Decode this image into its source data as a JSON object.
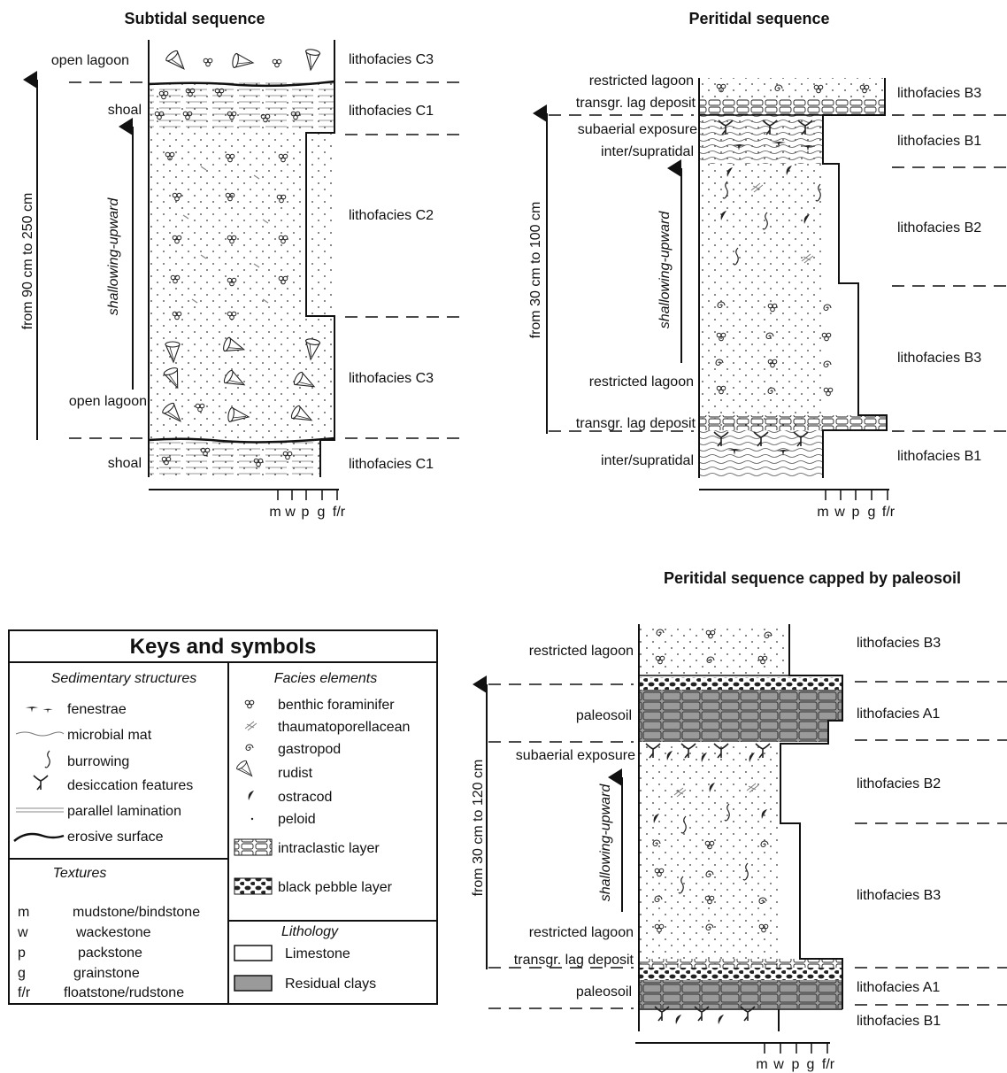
{
  "subtidal": {
    "title": "Subtidal sequence",
    "thickness": "from 90 cm to 250 cm",
    "trend": "shallowing-upward",
    "env_left": [
      "open lagoon",
      "shoal",
      "open lagoon",
      "shoal"
    ],
    "lithofacies": [
      "lithofacies C3",
      "lithofacies C1",
      "lithofacies C2",
      "lithofacies C3",
      "lithofacies C1"
    ],
    "texture_ticks": [
      "m",
      "w",
      "p",
      "g",
      "f/r"
    ]
  },
  "peritidal": {
    "title": "Peritidal sequence",
    "thickness": "from 30 cm to 100 cm",
    "trend": "shallowing-upward",
    "env_left": [
      "restricted lagoon",
      "transgr. lag deposit",
      "subaerial exposure",
      "inter/supratidal",
      "restricted lagoon",
      "transgr. lag deposit",
      "inter/supratidal"
    ],
    "lithofacies": [
      "lithofacies B3",
      "lithofacies B1",
      "lithofacies B2",
      "lithofacies B3",
      "lithofacies B1"
    ],
    "texture_ticks": [
      "m",
      "w",
      "p",
      "g",
      "f/r"
    ]
  },
  "paleosoil": {
    "title": "Peritidal sequence capped by paleosoil",
    "thickness": "from 30 cm to 120 cm",
    "trend": "shallowing-upward",
    "env_left": [
      "restricted lagoon",
      "paleosoil",
      "subaerial exposure",
      "restricted lagoon",
      "transgr. lag deposit",
      "paleosoil"
    ],
    "lithofacies": [
      "lithofacies B3",
      "lithofacies A1",
      "lithofacies B2",
      "lithofacies B3",
      "lithofacies A1",
      "lithofacies B1"
    ],
    "texture_ticks": [
      "m",
      "w",
      "p",
      "g",
      "f/r"
    ]
  },
  "legend": {
    "title": "Keys and symbols",
    "sed_title": "Sedimentary structures",
    "sed_items": [
      "fenestrae",
      "microbial mat",
      "burrowing",
      "desiccation features",
      "parallel lamination",
      "erosive surface"
    ],
    "facies_title": "Facies elements",
    "facies_items": [
      "benthic foraminifer",
      "thaumatoporellacean",
      "gastropod",
      "rudist",
      "ostracod",
      "peloid",
      "intraclastic layer",
      "black pebble layer"
    ],
    "textures_title": "Textures",
    "textures": [
      {
        "code": "m",
        "name": "mudstone/bindstone"
      },
      {
        "code": "w",
        "name": "wackestone"
      },
      {
        "code": "p",
        "name": "packstone"
      },
      {
        "code": "g",
        "name": "grainstone"
      },
      {
        "code": "f/r",
        "name": "floatstone/rudstone"
      }
    ],
    "lithology_title": "Lithology",
    "lithology": [
      "Limestone",
      "Residual clays"
    ],
    "colors": {
      "residual_clay": "#9a9a9a",
      "black_pebble": "#222222"
    }
  }
}
